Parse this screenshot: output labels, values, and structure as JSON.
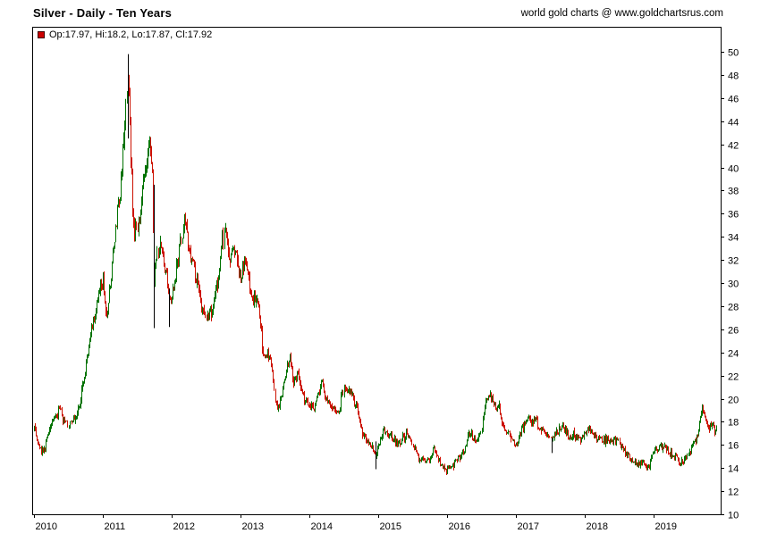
{
  "header": {
    "title": "Silver - Daily - Ten Years",
    "source": "world gold charts @ www.goldchartsrus.com"
  },
  "legend": {
    "text": "Op:17.97, Hi:18.2, Lo:17.87, Cl:17.92",
    "marker_color": "#cc0000"
  },
  "chart_data": {
    "type": "line",
    "title": "Silver - Daily - Ten Years",
    "xlabel": "",
    "ylabel": "",
    "ylim": [
      10,
      50
    ],
    "grid": false,
    "legend_position": "top-left-inside",
    "last_quote": {
      "open": 17.97,
      "high": 18.2,
      "low": 17.87,
      "close": 17.92
    },
    "colors": {
      "up": "#007200",
      "down": "#cc1100",
      "spike": "#000000"
    },
    "x_ticks": [
      2010,
      2011,
      2012,
      2013,
      2014,
      2015,
      2016,
      2017,
      2018,
      2019
    ],
    "y_ticks": [
      10,
      12,
      14,
      16,
      18,
      20,
      22,
      24,
      26,
      28,
      30,
      32,
      34,
      36,
      38,
      40,
      42,
      44,
      46,
      48,
      50
    ],
    "series_monthly": [
      [
        2010.0,
        17.4
      ],
      [
        2010.08,
        15.9
      ],
      [
        2010.13,
        15.3
      ],
      [
        2010.17,
        16.4
      ],
      [
        2010.25,
        17.9
      ],
      [
        2010.33,
        18.6
      ],
      [
        2010.38,
        19.3
      ],
      [
        2010.42,
        18.2
      ],
      [
        2010.5,
        17.6
      ],
      [
        2010.58,
        18.4
      ],
      [
        2010.67,
        19.9
      ],
      [
        2010.75,
        23.0
      ],
      [
        2010.83,
        26.0
      ],
      [
        2010.92,
        28.5
      ],
      [
        2011.0,
        30.7
      ],
      [
        2011.04,
        27.2
      ],
      [
        2011.08,
        28.3
      ],
      [
        2011.17,
        33.9
      ],
      [
        2011.25,
        37.8
      ],
      [
        2011.33,
        45.5
      ],
      [
        2011.36,
        48.3
      ],
      [
        2011.4,
        41.0
      ],
      [
        2011.44,
        35.0
      ],
      [
        2011.5,
        34.5
      ],
      [
        2011.54,
        36.0
      ],
      [
        2011.58,
        39.5
      ],
      [
        2011.63,
        41.0
      ],
      [
        2011.67,
        42.0
      ],
      [
        2011.71,
        40.0
      ],
      [
        2011.74,
        30.0
      ],
      [
        2011.77,
        31.5
      ],
      [
        2011.83,
        34.0
      ],
      [
        2011.88,
        31.5
      ],
      [
        2011.92,
        30.5
      ],
      [
        2011.96,
        28.8
      ],
      [
        2012.0,
        28.5
      ],
      [
        2012.08,
        32.0
      ],
      [
        2012.15,
        34.3
      ],
      [
        2012.19,
        35.3
      ],
      [
        2012.25,
        32.8
      ],
      [
        2012.33,
        31.3
      ],
      [
        2012.42,
        28.3
      ],
      [
        2012.5,
        27.2
      ],
      [
        2012.58,
        27.8
      ],
      [
        2012.67,
        30.5
      ],
      [
        2012.73,
        34.0
      ],
      [
        2012.79,
        34.3
      ],
      [
        2012.83,
        32.3
      ],
      [
        2012.88,
        32.8
      ],
      [
        2012.92,
        33.0
      ],
      [
        2013.0,
        30.2
      ],
      [
        2013.04,
        31.8
      ],
      [
        2013.08,
        31.5
      ],
      [
        2013.17,
        28.7
      ],
      [
        2013.25,
        28.5
      ],
      [
        2013.29,
        27.0
      ],
      [
        2013.33,
        23.5
      ],
      [
        2013.42,
        23.8
      ],
      [
        2013.46,
        22.3
      ],
      [
        2013.5,
        19.8
      ],
      [
        2013.54,
        19.3
      ],
      [
        2013.58,
        19.9
      ],
      [
        2013.67,
        23.2
      ],
      [
        2013.71,
        23.5
      ],
      [
        2013.75,
        21.7
      ],
      [
        2013.83,
        21.9
      ],
      [
        2013.92,
        19.9
      ],
      [
        2014.0,
        19.4
      ],
      [
        2014.08,
        19.3
      ],
      [
        2014.17,
        21.4
      ],
      [
        2014.21,
        20.7
      ],
      [
        2014.25,
        19.9
      ],
      [
        2014.33,
        19.4
      ],
      [
        2014.42,
        18.8
      ],
      [
        2014.5,
        20.9
      ],
      [
        2014.58,
        20.5
      ],
      [
        2014.67,
        19.4
      ],
      [
        2014.71,
        18.5
      ],
      [
        2014.75,
        17.3
      ],
      [
        2014.83,
        16.4
      ],
      [
        2014.92,
        15.6
      ],
      [
        2014.96,
        15.0
      ],
      [
        2015.0,
        15.9
      ],
      [
        2015.08,
        17.3
      ],
      [
        2015.17,
        16.7
      ],
      [
        2015.25,
        16.3
      ],
      [
        2015.33,
        16.3
      ],
      [
        2015.42,
        17.0
      ],
      [
        2015.5,
        15.8
      ],
      [
        2015.58,
        14.9
      ],
      [
        2015.67,
        14.6
      ],
      [
        2015.75,
        14.6
      ],
      [
        2015.79,
        15.9
      ],
      [
        2015.83,
        15.4
      ],
      [
        2015.92,
        14.2
      ],
      [
        2016.0,
        13.9
      ],
      [
        2016.08,
        14.3
      ],
      [
        2016.17,
        15.0
      ],
      [
        2016.25,
        15.4
      ],
      [
        2016.29,
        16.4
      ],
      [
        2016.33,
        17.1
      ],
      [
        2016.42,
        16.2
      ],
      [
        2016.5,
        17.2
      ],
      [
        2016.54,
        19.4
      ],
      [
        2016.58,
        20.0
      ],
      [
        2016.63,
        20.3
      ],
      [
        2016.67,
        19.7
      ],
      [
        2016.71,
        19.2
      ],
      [
        2016.75,
        19.3
      ],
      [
        2016.79,
        17.8
      ],
      [
        2016.83,
        17.6
      ],
      [
        2016.92,
        16.7
      ],
      [
        2017.0,
        16.0
      ],
      [
        2017.08,
        17.3
      ],
      [
        2017.17,
        18.3
      ],
      [
        2017.25,
        18.2
      ],
      [
        2017.29,
        18.4
      ],
      [
        2017.33,
        17.3
      ],
      [
        2017.42,
        17.2
      ],
      [
        2017.5,
        16.5
      ],
      [
        2017.58,
        16.9
      ],
      [
        2017.67,
        17.7
      ],
      [
        2017.75,
        16.8
      ],
      [
        2017.83,
        16.9
      ],
      [
        2017.92,
        16.4
      ],
      [
        2018.0,
        17.0
      ],
      [
        2018.08,
        17.3
      ],
      [
        2018.17,
        16.5
      ],
      [
        2018.25,
        16.4
      ],
      [
        2018.33,
        16.5
      ],
      [
        2018.42,
        16.4
      ],
      [
        2018.5,
        16.1
      ],
      [
        2018.58,
        15.4
      ],
      [
        2018.67,
        14.7
      ],
      [
        2018.75,
        14.3
      ],
      [
        2018.83,
        14.4
      ],
      [
        2018.92,
        14.2
      ],
      [
        2019.0,
        15.4
      ],
      [
        2019.08,
        15.9
      ],
      [
        2019.17,
        15.8
      ],
      [
        2019.21,
        15.3
      ],
      [
        2019.25,
        15.1
      ],
      [
        2019.33,
        14.9
      ],
      [
        2019.42,
        14.4
      ],
      [
        2019.5,
        15.3
      ],
      [
        2019.58,
        16.2
      ],
      [
        2019.63,
        17.0
      ],
      [
        2019.67,
        18.2
      ],
      [
        2019.71,
        19.3
      ],
      [
        2019.75,
        18.2
      ],
      [
        2019.79,
        17.6
      ],
      [
        2019.83,
        17.8
      ],
      [
        2019.88,
        17.1
      ],
      [
        2019.92,
        17.92
      ]
    ],
    "spikes": [
      [
        2011.36,
        42.5,
        49.8
      ],
      [
        2011.74,
        26.1,
        38.5
      ],
      [
        2011.96,
        26.2,
        29.5
      ],
      [
        2014.96,
        13.9,
        16.3
      ],
      [
        2017.52,
        15.3,
        16.6
      ]
    ]
  }
}
